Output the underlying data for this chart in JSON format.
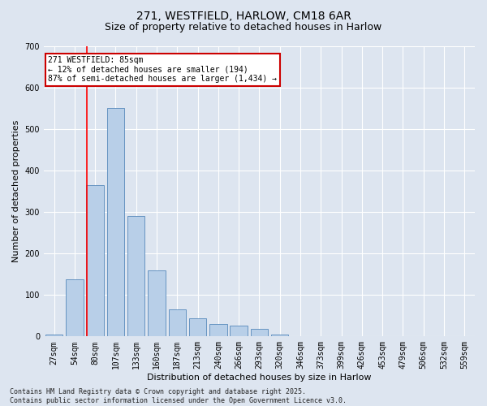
{
  "title_line1": "271, WESTFIELD, HARLOW, CM18 6AR",
  "title_line2": "Size of property relative to detached houses in Harlow",
  "xlabel": "Distribution of detached houses by size in Harlow",
  "ylabel": "Number of detached properties",
  "background_color": "#dde5f0",
  "bar_color": "#b8cfe8",
  "bar_edge_color": "#5588bb",
  "categories": [
    "27sqm",
    "54sqm",
    "80sqm",
    "107sqm",
    "133sqm",
    "160sqm",
    "187sqm",
    "213sqm",
    "240sqm",
    "266sqm",
    "293sqm",
    "320sqm",
    "346sqm",
    "373sqm",
    "399sqm",
    "426sqm",
    "453sqm",
    "479sqm",
    "506sqm",
    "532sqm",
    "559sqm"
  ],
  "values": [
    5,
    138,
    365,
    550,
    290,
    160,
    65,
    43,
    30,
    27,
    18,
    5,
    0,
    0,
    0,
    0,
    0,
    0,
    0,
    0,
    0
  ],
  "ylim": [
    0,
    700
  ],
  "yticks": [
    0,
    100,
    200,
    300,
    400,
    500,
    600,
    700
  ],
  "red_line_x": 1.6,
  "annotation_text": "271 WESTFIELD: 85sqm\n← 12% of detached houses are smaller (194)\n87% of semi-detached houses are larger (1,434) →",
  "annotation_box_facecolor": "#ffffff",
  "annotation_border_color": "#cc0000",
  "footer_text": "Contains HM Land Registry data © Crown copyright and database right 2025.\nContains public sector information licensed under the Open Government Licence v3.0.",
  "grid_color": "#ffffff",
  "title_fontsize": 10,
  "subtitle_fontsize": 9,
  "axis_label_fontsize": 8,
  "tick_fontsize": 7,
  "annotation_fontsize": 7,
  "footer_fontsize": 6
}
